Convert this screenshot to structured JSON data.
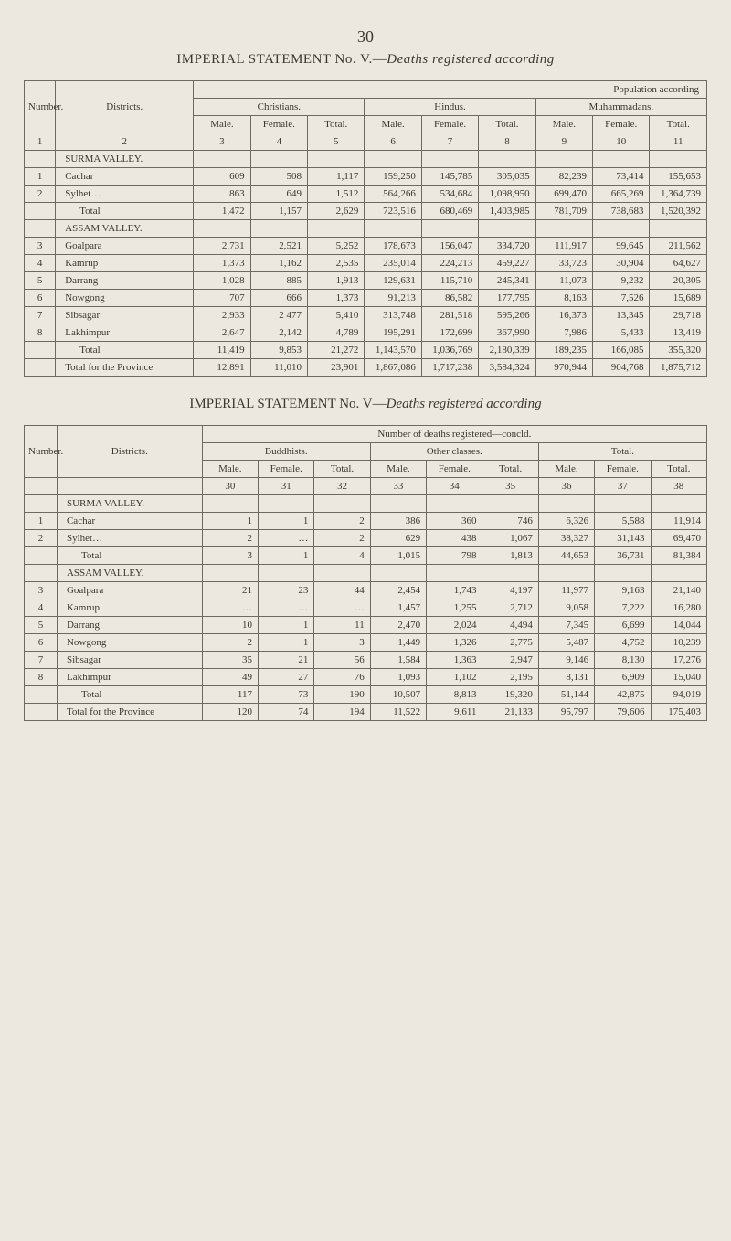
{
  "page_number": "30",
  "title_a_prefix": "IMPERIAL STATEMENT  No.  V.—",
  "title_a_italic": "Deaths  registered  according",
  "title_b_prefix": "IMPERIAL STATEMENT No.  V—",
  "title_b_italic": "Deaths registered according",
  "colors": {
    "bg": "#ece8df",
    "ink": "#3a3832",
    "rule": "#6f6a5f"
  },
  "t1": {
    "super": "Population according",
    "hdr_number": "Number.",
    "hdr_districts": "Districts.",
    "grp_christians": "Christians.",
    "grp_hindus": "Hindus.",
    "grp_muh": "Muhammadans.",
    "sub": {
      "male": "Male.",
      "female": "Female.",
      "total": "Total."
    },
    "colnums": [
      "1",
      "2",
      "3",
      "4",
      "5",
      "6",
      "7",
      "8",
      "9",
      "10",
      "11"
    ],
    "section_surma": "SURMA VALLEY.",
    "section_assam": "ASSAM VALLEY.",
    "row_total": "Total",
    "row_total_ellipsis": "…",
    "row_total_dots": "  …",
    "row_total_prov": "Total for the Province",
    "rows": [
      {
        "n": "1",
        "d": "Cachar",
        "c": [
          "609",
          "508",
          "1,117",
          "159,250",
          "145,785",
          "305,035",
          "82,239",
          "73,414",
          "155,653"
        ]
      },
      {
        "n": "2",
        "d": "Sylhet…",
        "c": [
          "863",
          "649",
          "1,512",
          "564,266",
          "534,684",
          "1,098,950",
          "699,470",
          "665,269",
          "1,364,739"
        ]
      }
    ],
    "total1": [
      "1,472",
      "1,157",
      "2,629",
      "723,516",
      "680,469",
      "1,403,985",
      "781,709",
      "738,683",
      "1,520,392"
    ],
    "rows2": [
      {
        "n": "3",
        "d": "Goalpara",
        "c": [
          "2,731",
          "2,521",
          "5,252",
          "178,673",
          "156,047",
          "334,720",
          "111,917",
          "99,645",
          "211,562"
        ]
      },
      {
        "n": "4",
        "d": "Kamrup",
        "c": [
          "1,373",
          "1,162",
          "2,535",
          "235,014",
          "224,213",
          "459,227",
          "33,723",
          "30,904",
          "64,627"
        ]
      },
      {
        "n": "5",
        "d": "Darrang",
        "c": [
          "1,028",
          "885",
          "1,913",
          "129,631",
          "115,710",
          "245,341",
          "11,073",
          "9,232",
          "20,305"
        ]
      },
      {
        "n": "6",
        "d": "Nowgong",
        "c": [
          "707",
          "666",
          "1,373",
          "91,213",
          "86,582",
          "177,795",
          "8,163",
          "7,526",
          "15,689"
        ]
      },
      {
        "n": "7",
        "d": "Sibsagar",
        "c": [
          "2,933",
          "2 477",
          "5,410",
          "313,748",
          "281,518",
          "595,266",
          "16,373",
          "13,345",
          "29,718"
        ]
      },
      {
        "n": "8",
        "d": "Lakhimpur",
        "c": [
          "2,647",
          "2,142",
          "4,789",
          "195,291",
          "172,699",
          "367,990",
          "7,986",
          "5,433",
          "13,419"
        ]
      }
    ],
    "total2": [
      "11,419",
      "9,853",
      "21,272",
      "1,143,570",
      "1,036,769",
      "2,180,339",
      "189,235",
      "166,085",
      "355,320"
    ],
    "grand": [
      "12,891",
      "11,010",
      "23,901",
      "1,867,086",
      "1,717,238",
      "3,584,324",
      "970,944",
      "904,768",
      "1,875,712"
    ]
  },
  "t2": {
    "super": "Number of deaths registered—concld.",
    "hdr_number": "Number.",
    "hdr_districts": "Districts.",
    "grp_budd": "Buddhists.",
    "grp_other": "Other classes.",
    "grp_total": "Total.",
    "sub": {
      "male": "Male.",
      "female": "Female.",
      "total": "Total."
    },
    "colnums": [
      "",
      "",
      "30",
      "31",
      "32",
      "33",
      "34",
      "35",
      "36",
      "37",
      "38"
    ],
    "section_surma": "SURMA VALLEY.",
    "section_assam": "ASSAM VALLEY.",
    "row_total": "Total",
    "row_total_prov": "Total for the Province",
    "rows": [
      {
        "n": "1",
        "d": "Cachar",
        "c": [
          "1",
          "1",
          "2",
          "386",
          "360",
          "746",
          "6,326",
          "5,588",
          "11,914"
        ]
      },
      {
        "n": "2",
        "d": "Sylhet…",
        "c": [
          "2",
          "…",
          "2",
          "629",
          "438",
          "1,067",
          "38,327",
          "31,143",
          "69,470"
        ]
      }
    ],
    "total1": [
      "3",
      "1",
      "4",
      "1,015",
      "798",
      "1,813",
      "44,653",
      "36,731",
      "81,384"
    ],
    "rows2": [
      {
        "n": "3",
        "d": "Goalpara",
        "c": [
          "21",
          "23",
          "44",
          "2,454",
          "1,743",
          "4,197",
          "11,977",
          "9,163",
          "21,140"
        ]
      },
      {
        "n": "4",
        "d": "Kamrup",
        "c": [
          "…",
          "…",
          "…",
          "1,457",
          "1,255",
          "2,712",
          "9,058",
          "7,222",
          "16,280"
        ]
      },
      {
        "n": "5",
        "d": "Darrang",
        "c": [
          "10",
          "1",
          "11",
          "2,470",
          "2,024",
          "4,494",
          "7,345",
          "6,699",
          "14,044"
        ]
      },
      {
        "n": "6",
        "d": "Nowgong",
        "c": [
          "2",
          "1",
          "3",
          "1,449",
          "1,326",
          "2,775",
          "5,487",
          "4,752",
          "10,239"
        ]
      },
      {
        "n": "7",
        "d": "Sibsagar",
        "c": [
          "35",
          "21",
          "56",
          "1,584",
          "1,363",
          "2,947",
          "9,146",
          "8,130",
          "17,276"
        ]
      },
      {
        "n": "8",
        "d": "Lakhimpur",
        "c": [
          "49",
          "27",
          "76",
          "1,093",
          "1,102",
          "2,195",
          "8,131",
          "6,909",
          "15,040"
        ]
      }
    ],
    "total2": [
      "117",
      "73",
      "190",
      "10,507",
      "8,813",
      "19,320",
      "51,144",
      "42,875",
      "94,019"
    ],
    "grand": [
      "120",
      "74",
      "194",
      "11,522",
      "9,611",
      "21,133",
      "95,797",
      "79,606",
      "175,403"
    ]
  }
}
